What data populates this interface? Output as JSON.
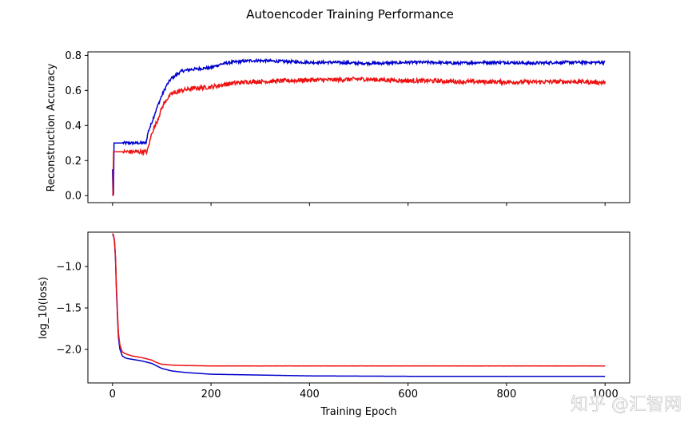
{
  "figure": {
    "title": "Autoencoder Training Performance",
    "watermark": "知乎 @汇智网"
  },
  "chart_data": [
    {
      "type": "line",
      "ylabel": "Reconstruction Accuracy",
      "xlabel": "",
      "xlim": [
        -50,
        1050
      ],
      "ylim": [
        -0.04,
        0.82
      ],
      "xticks": [
        0,
        200,
        400,
        600,
        800,
        1000
      ],
      "xtick_labels_visible": false,
      "yticks": [
        0.0,
        0.2,
        0.4,
        0.6,
        0.8
      ],
      "ytick_labels": [
        "0.0",
        "0.2",
        "0.4",
        "0.6",
        "0.8"
      ],
      "grid": false,
      "legend": "none",
      "series": [
        {
          "color": "#0000cc",
          "x": [
            0,
            1,
            2,
            3,
            4,
            5,
            10,
            20,
            40,
            60,
            68,
            72,
            80,
            90,
            100,
            110,
            120,
            140,
            160,
            180,
            200,
            220,
            240,
            260,
            280,
            300,
            350,
            400,
            450,
            500,
            550,
            600,
            650,
            700,
            750,
            800,
            850,
            900,
            950,
            1000
          ],
          "y": [
            0.15,
            0.0,
            0.01,
            0.3,
            0.3,
            0.3,
            0.3,
            0.3,
            0.3,
            0.3,
            0.3,
            0.36,
            0.42,
            0.5,
            0.57,
            0.63,
            0.67,
            0.71,
            0.72,
            0.725,
            0.73,
            0.75,
            0.76,
            0.765,
            0.77,
            0.77,
            0.765,
            0.76,
            0.76,
            0.755,
            0.755,
            0.76,
            0.76,
            0.755,
            0.76,
            0.76,
            0.755,
            0.76,
            0.76,
            0.76
          ],
          "noise": 0.008
        },
        {
          "color": "#ee1111",
          "x": [
            0,
            1,
            2,
            3,
            4,
            5,
            10,
            20,
            40,
            60,
            70,
            75,
            80,
            90,
            100,
            110,
            120,
            140,
            160,
            180,
            200,
            220,
            240,
            260,
            280,
            300,
            350,
            400,
            450,
            500,
            550,
            600,
            650,
            700,
            750,
            800,
            850,
            900,
            950,
            1000
          ],
          "y": [
            0.0,
            0.01,
            0.25,
            0.25,
            0.25,
            0.25,
            0.25,
            0.25,
            0.25,
            0.25,
            0.25,
            0.3,
            0.36,
            0.42,
            0.5,
            0.55,
            0.58,
            0.6,
            0.61,
            0.615,
            0.62,
            0.63,
            0.64,
            0.645,
            0.65,
            0.65,
            0.655,
            0.66,
            0.66,
            0.665,
            0.66,
            0.655,
            0.655,
            0.65,
            0.65,
            0.648,
            0.648,
            0.65,
            0.65,
            0.645
          ],
          "noise": 0.012
        }
      ]
    },
    {
      "type": "line",
      "ylabel": "log_10(loss)",
      "xlabel": "Training Epoch",
      "xlim": [
        -50,
        1050
      ],
      "ylim": [
        -2.405,
        -0.585
      ],
      "xticks": [
        0,
        200,
        400,
        600,
        800,
        1000
      ],
      "xtick_labels": [
        "0",
        "200",
        "400",
        "600",
        "800",
        "1000"
      ],
      "yticks": [
        -1.0,
        -1.5,
        -2.0
      ],
      "ytick_labels": [
        "−1.0",
        "−1.5",
        "−2.0"
      ],
      "grid": false,
      "legend": "none",
      "series": [
        {
          "color": "#0000cc",
          "x": [
            0,
            2,
            4,
            6,
            8,
            10,
            12,
            15,
            20,
            25,
            30,
            40,
            60,
            80,
            90,
            100,
            120,
            150,
            200,
            300,
            400,
            600,
            800,
            1000
          ],
          "y": [
            -0.62,
            -0.63,
            -0.7,
            -0.9,
            -1.3,
            -1.6,
            -1.85,
            -2.0,
            -2.08,
            -2.1,
            -2.11,
            -2.12,
            -2.14,
            -2.17,
            -2.2,
            -2.23,
            -2.26,
            -2.28,
            -2.3,
            -2.31,
            -2.32,
            -2.325,
            -2.325,
            -2.325
          ],
          "noise": 0
        },
        {
          "color": "#ee1111",
          "x": [
            0,
            2,
            4,
            6,
            8,
            10,
            12,
            15,
            20,
            25,
            30,
            40,
            60,
            80,
            90,
            100,
            120,
            150,
            200,
            300,
            400,
            600,
            800,
            1000
          ],
          "y": [
            -0.6,
            -0.62,
            -0.69,
            -0.88,
            -1.25,
            -1.55,
            -1.8,
            -1.95,
            -2.03,
            -2.05,
            -2.06,
            -2.08,
            -2.1,
            -2.13,
            -2.16,
            -2.18,
            -2.19,
            -2.195,
            -2.2,
            -2.2,
            -2.2,
            -2.2,
            -2.2,
            -2.2
          ],
          "noise": 0.001
        }
      ]
    }
  ]
}
